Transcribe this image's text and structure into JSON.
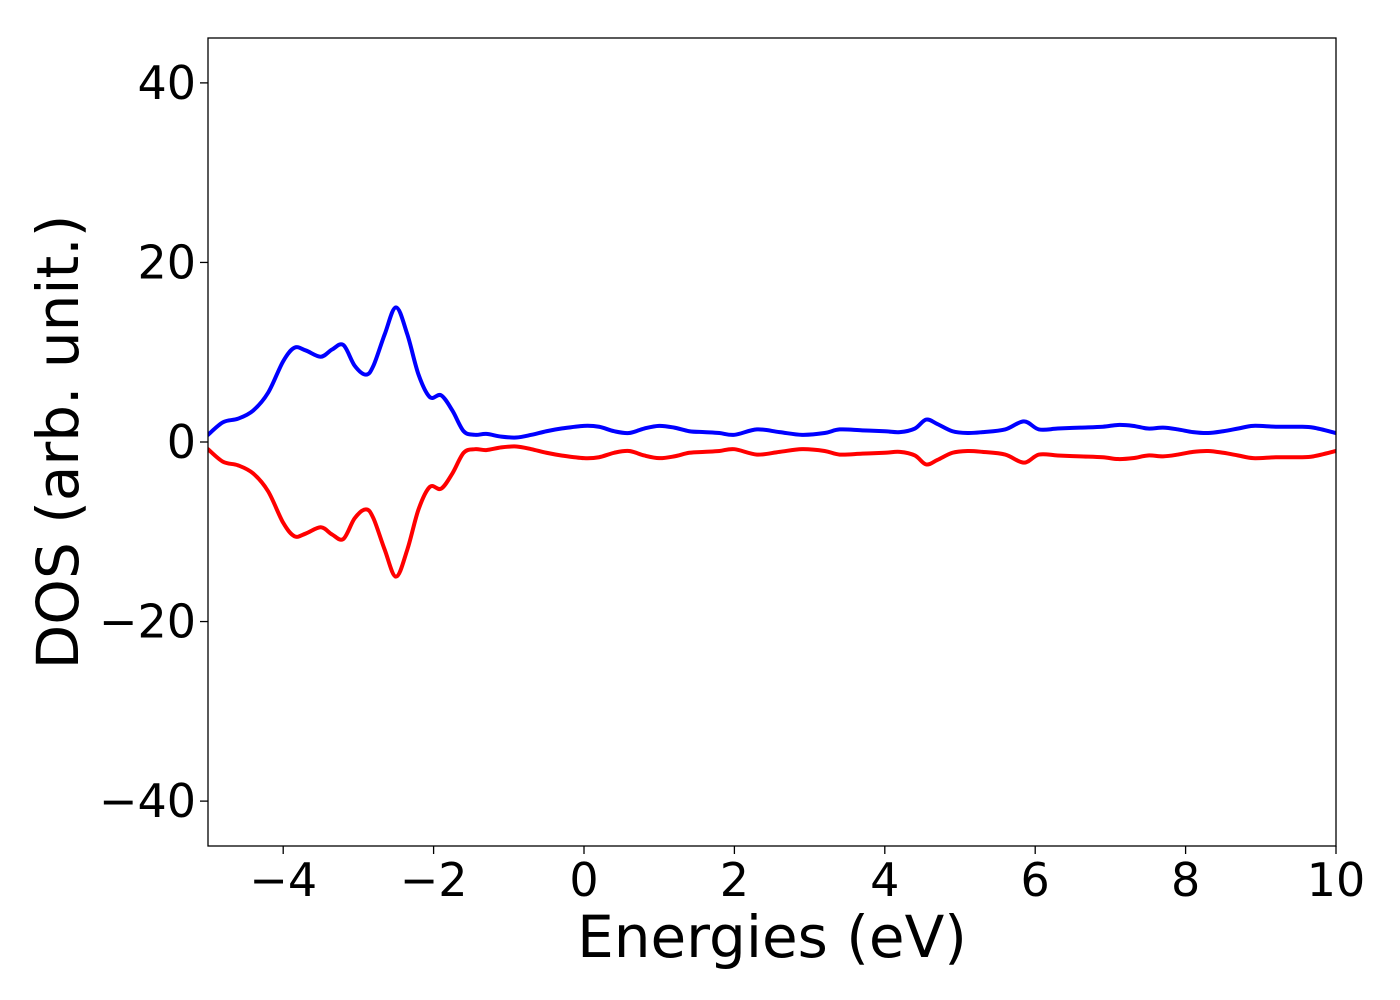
{
  "chart_data": {
    "type": "line",
    "title": "",
    "xlabel": "Energies (eV)",
    "ylabel": "DOS (arb. unit.)",
    "xlim": [
      -5,
      10
    ],
    "ylim": [
      -45,
      45
    ],
    "xticks": [
      -4,
      -2,
      0,
      2,
      4,
      6,
      8,
      10
    ],
    "xtick_labels": [
      "−4",
      "−2",
      "0",
      "2",
      "4",
      "6",
      "8",
      "10"
    ],
    "yticks": [
      40,
      20,
      0,
      -20,
      -40
    ],
    "ytick_labels": [
      "40",
      "20",
      "0",
      "−20",
      "−40"
    ],
    "grid": false,
    "legend": "none",
    "series": [
      {
        "color": "#0000ff",
        "x": [
          -5.0,
          -4.8,
          -4.6,
          -4.4,
          -4.2,
          -4.0,
          -3.85,
          -3.7,
          -3.5,
          -3.35,
          -3.2,
          -3.05,
          -2.9,
          -2.8,
          -2.65,
          -2.5,
          -2.35,
          -2.2,
          -2.05,
          -1.9,
          -1.75,
          -1.6,
          -1.45,
          -1.3,
          -1.1,
          -0.9,
          -0.7,
          -0.5,
          -0.3,
          0.0,
          0.2,
          0.4,
          0.6,
          0.8,
          1.0,
          1.2,
          1.4,
          1.6,
          1.8,
          2.0,
          2.3,
          2.6,
          2.9,
          3.2,
          3.4,
          3.7,
          4.0,
          4.2,
          4.4,
          4.55,
          4.7,
          4.9,
          5.1,
          5.3,
          5.6,
          5.85,
          6.05,
          6.3,
          6.6,
          6.9,
          7.1,
          7.3,
          7.5,
          7.7,
          7.9,
          8.1,
          8.3,
          8.5,
          8.7,
          8.9,
          9.2,
          9.5,
          9.7,
          10.0
        ],
        "y": [
          0.8,
          2.2,
          2.6,
          3.5,
          5.5,
          9.0,
          10.5,
          10.2,
          9.5,
          10.3,
          10.8,
          8.5,
          7.5,
          8.5,
          12.0,
          15.0,
          12.0,
          7.5,
          5.0,
          5.2,
          3.5,
          1.2,
          0.8,
          0.9,
          0.6,
          0.5,
          0.8,
          1.2,
          1.5,
          1.8,
          1.7,
          1.2,
          1.0,
          1.5,
          1.8,
          1.6,
          1.2,
          1.1,
          1.0,
          0.8,
          1.4,
          1.1,
          0.8,
          1.0,
          1.4,
          1.3,
          1.2,
          1.1,
          1.5,
          2.5,
          2.0,
          1.2,
          1.0,
          1.1,
          1.4,
          2.3,
          1.4,
          1.5,
          1.6,
          1.7,
          1.9,
          1.8,
          1.5,
          1.6,
          1.4,
          1.1,
          1.0,
          1.2,
          1.5,
          1.8,
          1.7,
          1.7,
          1.6,
          1.0
        ]
      },
      {
        "color": "#ff0000",
        "x": [
          -5.0,
          -4.8,
          -4.6,
          -4.4,
          -4.2,
          -4.0,
          -3.85,
          -3.7,
          -3.5,
          -3.35,
          -3.2,
          -3.05,
          -2.9,
          -2.8,
          -2.65,
          -2.5,
          -2.35,
          -2.2,
          -2.05,
          -1.9,
          -1.75,
          -1.6,
          -1.45,
          -1.3,
          -1.1,
          -0.9,
          -0.7,
          -0.5,
          -0.3,
          0.0,
          0.2,
          0.4,
          0.6,
          0.8,
          1.0,
          1.2,
          1.4,
          1.6,
          1.8,
          2.0,
          2.3,
          2.6,
          2.9,
          3.2,
          3.4,
          3.7,
          4.0,
          4.2,
          4.4,
          4.55,
          4.7,
          4.9,
          5.1,
          5.3,
          5.6,
          5.85,
          6.05,
          6.3,
          6.6,
          6.9,
          7.1,
          7.3,
          7.5,
          7.7,
          7.9,
          8.1,
          8.3,
          8.5,
          8.7,
          8.9,
          9.2,
          9.5,
          9.7,
          10.0
        ],
        "y": [
          -0.8,
          -2.2,
          -2.6,
          -3.5,
          -5.5,
          -9.0,
          -10.5,
          -10.2,
          -9.5,
          -10.3,
          -10.8,
          -8.5,
          -7.5,
          -8.5,
          -12.0,
          -15.0,
          -12.0,
          -7.5,
          -5.0,
          -5.2,
          -3.5,
          -1.2,
          -0.8,
          -0.9,
          -0.6,
          -0.5,
          -0.8,
          -1.2,
          -1.5,
          -1.8,
          -1.7,
          -1.2,
          -1.0,
          -1.5,
          -1.8,
          -1.6,
          -1.2,
          -1.1,
          -1.0,
          -0.8,
          -1.4,
          -1.1,
          -0.8,
          -1.0,
          -1.4,
          -1.3,
          -1.2,
          -1.1,
          -1.5,
          -2.5,
          -2.0,
          -1.2,
          -1.0,
          -1.1,
          -1.4,
          -2.3,
          -1.4,
          -1.5,
          -1.6,
          -1.7,
          -1.9,
          -1.8,
          -1.5,
          -1.6,
          -1.4,
          -1.1,
          -1.0,
          -1.2,
          -1.5,
          -1.8,
          -1.7,
          -1.7,
          -1.6,
          -1.0
        ]
      }
    ]
  }
}
